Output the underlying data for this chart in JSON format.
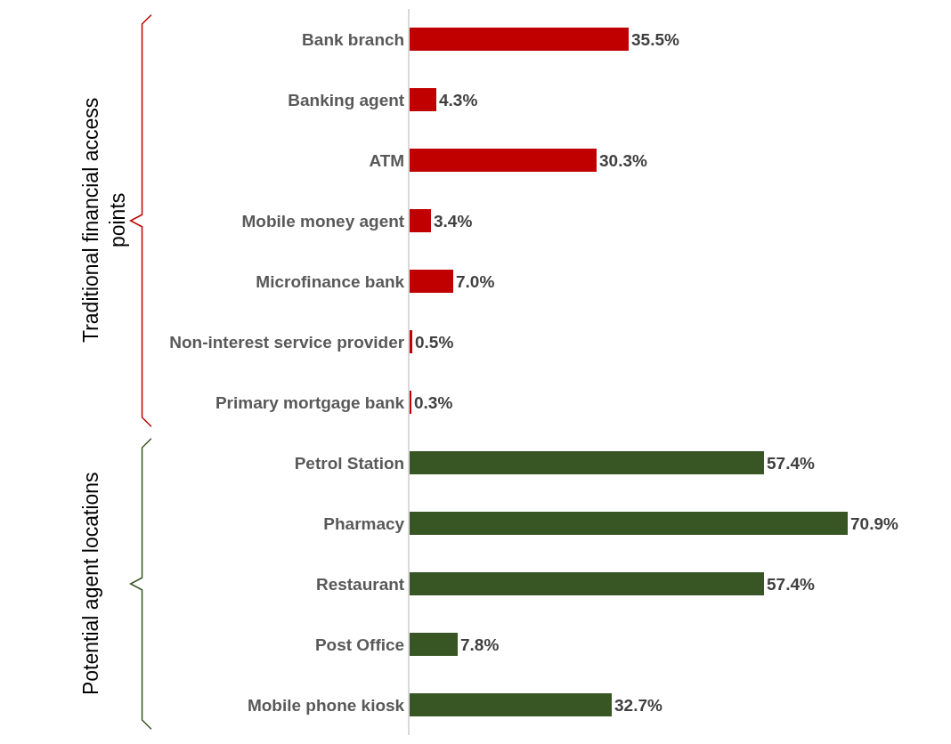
{
  "chart_data": {
    "type": "bar",
    "orientation": "horizontal",
    "categories": [
      "Bank branch",
      "Banking agent",
      "ATM",
      "Mobile money agent",
      "Microfinance bank",
      "Non-interest service provider",
      "Primary mortgage bank",
      "Petrol Station",
      "Pharmacy",
      "Restaurant",
      "Post Office",
      "Mobile phone kiosk"
    ],
    "values": [
      35.5,
      4.3,
      30.3,
      3.4,
      7.0,
      0.5,
      0.3,
      57.4,
      70.9,
      57.4,
      7.8,
      32.7
    ],
    "value_labels": [
      "35.5%",
      "4.3%",
      "30.3%",
      "3.4%",
      "7.0%",
      "0.5%",
      "0.3%",
      "57.4%",
      "70.9%",
      "57.4%",
      "7.8%",
      "32.7%"
    ],
    "colors": [
      "#c00000",
      "#c00000",
      "#c00000",
      "#c00000",
      "#c00000",
      "#c00000",
      "#c00000",
      "#375623",
      "#375623",
      "#375623",
      "#375623",
      "#375623"
    ],
    "annotations": [
      "Traditional financial access points",
      "Potential agent locations"
    ]
  }
}
